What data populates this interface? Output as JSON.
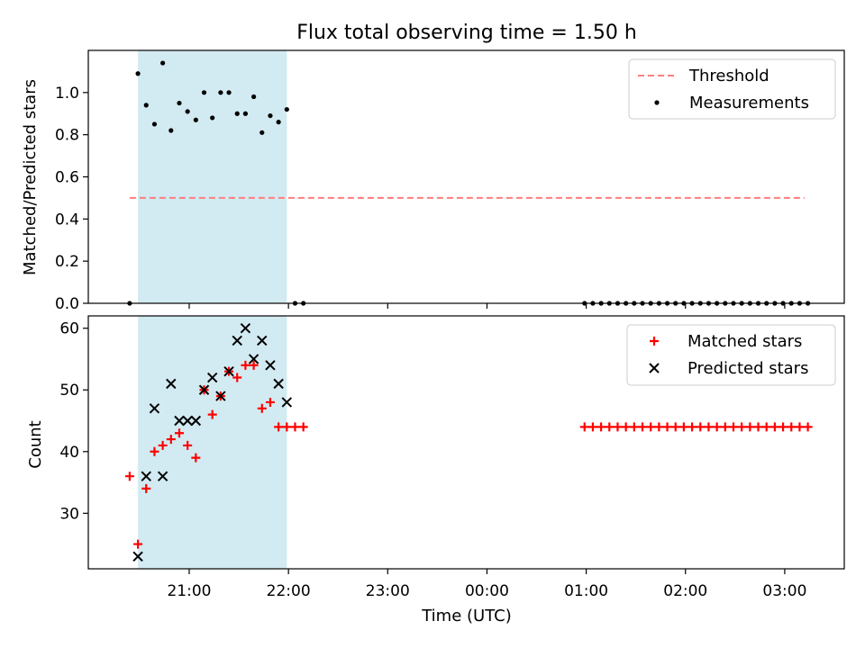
{
  "title": "Flux total observing time = 1.50 h",
  "colors": {
    "shade": "#add8e6",
    "threshold": "#ff7f7f",
    "matched": "#ff0000",
    "predicted": "#000000",
    "measurement": "#000000"
  },
  "chart_data": [
    {
      "type": "scatter",
      "panel": "top",
      "ylabel": "Matched/Predicted stars",
      "ylim": [
        0,
        1.2
      ],
      "yticks": [
        0.0,
        0.2,
        0.4,
        0.6,
        0.8,
        1.0
      ],
      "ytick_labels": [
        "0.0",
        "0.2",
        "0.4",
        "0.6",
        "0.8",
        "1.0"
      ],
      "grid": false,
      "legend_position": "top-right",
      "legend": [
        "Threshold",
        "Measurements"
      ],
      "shaded_interval": [
        "20:29",
        "21:59"
      ],
      "threshold": {
        "name": "Threshold",
        "value": 0.5,
        "x_range": [
          "20:24",
          "03:12"
        ],
        "style": "dashed"
      },
      "series": [
        {
          "name": "Measurements",
          "marker": "dot",
          "x": [
            "20:24",
            "20:29",
            "20:34",
            "20:39",
            "20:44",
            "20:49",
            "20:54",
            "20:59",
            "21:04",
            "21:09",
            "21:14",
            "21:19",
            "21:24",
            "21:29",
            "21:34",
            "21:39",
            "21:44",
            "21:49",
            "21:54",
            "21:59",
            "22:04",
            "22:09",
            "00:59",
            "01:04",
            "01:09",
            "01:14",
            "01:19",
            "01:24",
            "01:29",
            "01:34",
            "01:39",
            "01:44",
            "01:49",
            "01:54",
            "01:59",
            "02:04",
            "02:09",
            "02:14",
            "02:19",
            "02:24",
            "02:29",
            "02:34",
            "02:39",
            "02:44",
            "02:49",
            "02:54",
            "02:59",
            "03:04",
            "03:09",
            "03:14"
          ],
          "y": [
            0.0,
            1.09,
            0.94,
            0.85,
            1.14,
            0.82,
            0.95,
            0.91,
            0.87,
            1.0,
            0.88,
            1.0,
            1.0,
            0.9,
            0.9,
            0.98,
            0.81,
            0.89,
            0.86,
            0.92,
            0.0,
            0.0,
            0.0,
            0.0,
            0.0,
            0.0,
            0.0,
            0.0,
            0.0,
            0.0,
            0.0,
            0.0,
            0.0,
            0.0,
            0.0,
            0.0,
            0.0,
            0.0,
            0.0,
            0.0,
            0.0,
            0.0,
            0.0,
            0.0,
            0.0,
            0.0,
            0.0,
            0.0,
            0.0,
            0.0
          ]
        }
      ]
    },
    {
      "type": "scatter",
      "panel": "bottom",
      "xlabel": "Time (UTC)",
      "ylabel": "Count",
      "ylim": [
        21,
        62
      ],
      "yticks": [
        30,
        40,
        50,
        60
      ],
      "ytick_labels": [
        "30",
        "40",
        "50",
        "60"
      ],
      "xticks": [
        "21:00",
        "22:00",
        "23:00",
        "00:00",
        "01:00",
        "02:00",
        "03:00"
      ],
      "grid": false,
      "legend_position": "top-right",
      "legend": [
        "Matched stars",
        "Predicted stars"
      ],
      "shaded_interval": [
        "20:29",
        "21:59"
      ],
      "series": [
        {
          "name": "Matched stars",
          "marker": "plus",
          "x": [
            "20:24",
            "20:29",
            "20:34",
            "20:39",
            "20:44",
            "20:49",
            "20:54",
            "20:59",
            "21:04",
            "21:09",
            "21:14",
            "21:19",
            "21:24",
            "21:29",
            "21:34",
            "21:39",
            "21:44",
            "21:49",
            "21:54",
            "21:59",
            "22:04",
            "22:09",
            "00:59",
            "01:04",
            "01:09",
            "01:14",
            "01:19",
            "01:24",
            "01:29",
            "01:34",
            "01:39",
            "01:44",
            "01:49",
            "01:54",
            "01:59",
            "02:04",
            "02:09",
            "02:14",
            "02:19",
            "02:24",
            "02:29",
            "02:34",
            "02:39",
            "02:44",
            "02:49",
            "02:54",
            "02:59",
            "03:04",
            "03:09",
            "03:14"
          ],
          "y": [
            36,
            25,
            34,
            40,
            41,
            42,
            43,
            41,
            39,
            50,
            46,
            49,
            53,
            52,
            54,
            54,
            47,
            48,
            44,
            44,
            44,
            44,
            44,
            44,
            44,
            44,
            44,
            44,
            44,
            44,
            44,
            44,
            44,
            44,
            44,
            44,
            44,
            44,
            44,
            44,
            44,
            44,
            44,
            44,
            44,
            44,
            44,
            44,
            44,
            44
          ]
        },
        {
          "name": "Predicted stars",
          "marker": "x",
          "x": [
            "20:29",
            "20:34",
            "20:39",
            "20:44",
            "20:49",
            "20:54",
            "20:59",
            "21:04",
            "21:09",
            "21:14",
            "21:19",
            "21:24",
            "21:29",
            "21:34",
            "21:39",
            "21:44",
            "21:49",
            "21:54",
            "21:59"
          ],
          "y": [
            23,
            36,
            47,
            36,
            51,
            45,
            45,
            45,
            50,
            52,
            49,
            53,
            58,
            60,
            55,
            58,
            54,
            51,
            48
          ]
        }
      ]
    }
  ]
}
